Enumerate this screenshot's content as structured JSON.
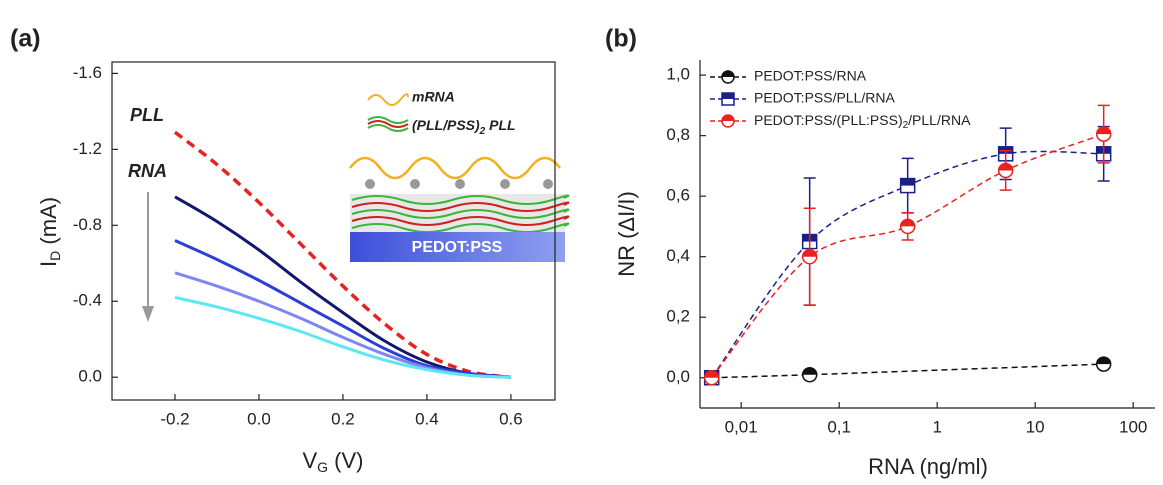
{
  "panel_labels": [
    "(a)",
    "(b)"
  ],
  "chart_data": [
    {
      "type": "line",
      "x_label": {
        "text": "V",
        "sub": "G",
        "unit": " (V)"
      },
      "y_label": {
        "text": "I",
        "sub": "D",
        "unit": " (mA)"
      },
      "x": [
        -0.2,
        -0.1,
        0.0,
        0.1,
        0.2,
        0.3,
        0.4,
        0.5,
        0.6
      ],
      "series": [
        {
          "color": "#e8231f",
          "dashed": true,
          "values": [
            -1.29,
            -1.12,
            -0.92,
            -0.7,
            -0.48,
            -0.28,
            -0.12,
            -0.03,
            0.0
          ]
        },
        {
          "color": "#10186e",
          "dashed": false,
          "values": [
            -0.95,
            -0.82,
            -0.67,
            -0.5,
            -0.34,
            -0.19,
            -0.08,
            -0.02,
            0.0
          ]
        },
        {
          "color": "#2a3fd6",
          "dashed": false,
          "values": [
            -0.72,
            -0.62,
            -0.51,
            -0.39,
            -0.27,
            -0.15,
            -0.06,
            -0.02,
            0.0
          ]
        },
        {
          "color": "#7f86f0",
          "dashed": false,
          "values": [
            -0.55,
            -0.48,
            -0.4,
            -0.31,
            -0.21,
            -0.12,
            -0.05,
            -0.01,
            0.0
          ]
        },
        {
          "color": "#5ee6f2",
          "dashed": false,
          "values": [
            -0.42,
            -0.37,
            -0.31,
            -0.24,
            -0.16,
            -0.09,
            -0.04,
            -0.01,
            0.0
          ]
        }
      ],
      "xlim": [
        -0.35,
        0.705
      ],
      "ylim": [
        0.12,
        -1.66
      ],
      "xticks": [
        -0.2,
        {
          "value": 0,
          "label": "0.0"
        },
        0.2,
        0.4,
        0.6
      ],
      "yticks": [
        -1.6,
        -1.2,
        -0.8,
        -0.4,
        {
          "value": 0,
          "label": "0.0"
        }
      ],
      "annotations": [
        "PLL",
        "RNA"
      ],
      "inset": {
        "mrna": "mRNA",
        "layers": {
          "text": "(PLL/PSS)",
          "sub": "2",
          "rest": " PLL"
        },
        "substrate": "PEDOT:PSS"
      }
    },
    {
      "type": "scatter",
      "x_label": "RNA (ng/ml)",
      "y_label": "NR (ΔI/I)",
      "xscale": "log",
      "legend_loc": "upper left",
      "series": [
        {
          "name": "PEDOT:PSS/RNA",
          "color": "#111111",
          "marker": "circle",
          "x": [
            0.005,
            0.05,
            50
          ],
          "values": [
            0.0,
            0.01,
            0.045
          ]
        },
        {
          "name": "PEDOT:PSS/PLL/RNA",
          "color": "#1b1f8a",
          "marker": "square",
          "x": [
            0.005,
            0.05,
            0.5,
            5,
            50
          ],
          "values": [
            0.0,
            0.45,
            0.635,
            0.74,
            0.74
          ],
          "errors": [
            0,
            0.21,
            0.09,
            0.085,
            0.09
          ]
        },
        {
          "name": "PEDOT:PSS/(PLL:PSS)2/PLL/RNA",
          "color": "#e8231f",
          "marker": "circle",
          "x": [
            0.005,
            0.05,
            0.5,
            5,
            50
          ],
          "values": [
            0.0,
            0.4,
            0.5,
            0.685,
            0.805
          ],
          "errors": [
            0,
            0.16,
            0.045,
            0.065,
            0.095
          ]
        }
      ],
      "xlim": [
        0.0038,
        167
      ],
      "ylim": [
        -0.1,
        1.05
      ],
      "xticks": [
        {
          "value": 0.01,
          "label": "0,01"
        },
        {
          "value": 0.1,
          "label": "0,1"
        },
        1,
        10,
        100
      ],
      "yticks": [
        {
          "value": 0,
          "label": "0,0"
        },
        {
          "value": 0.2,
          "label": "0,2"
        },
        {
          "value": 0.4,
          "label": "0,4"
        },
        {
          "value": 0.6,
          "label": "0,6"
        },
        {
          "value": 0.8,
          "label": "0,8"
        },
        {
          "value": 1.0,
          "label": "1,0"
        }
      ]
    }
  ]
}
